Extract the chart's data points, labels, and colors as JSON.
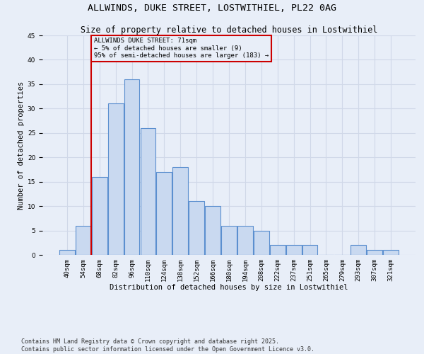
{
  "title": "ALLWINDS, DUKE STREET, LOSTWITHIEL, PL22 0AG",
  "subtitle": "Size of property relative to detached houses in Lostwithiel",
  "xlabel": "Distribution of detached houses by size in Lostwithiel",
  "ylabel": "Number of detached properties",
  "bar_labels": [
    "40sqm",
    "54sqm",
    "68sqm",
    "82sqm",
    "96sqm",
    "110sqm",
    "124sqm",
    "138sqm",
    "152sqm",
    "166sqm",
    "180sqm",
    "194sqm",
    "208sqm",
    "222sqm",
    "237sqm",
    "251sqm",
    "265sqm",
    "279sqm",
    "293sqm",
    "307sqm",
    "321sqm"
  ],
  "bar_values": [
    1,
    6,
    16,
    31,
    36,
    26,
    17,
    18,
    11,
    10,
    6,
    6,
    5,
    2,
    2,
    2,
    0,
    0,
    2,
    1,
    1
  ],
  "bar_color": "#c9d9f0",
  "bar_edge_color": "#5b8fcf",
  "grid_color": "#d0d8e8",
  "bg_color": "#e8eef8",
  "vline_x_index": 2,
  "vline_color": "#cc0000",
  "annotation_text": "ALLWINDS DUKE STREET: 71sqm\n← 5% of detached houses are smaller (9)\n95% of semi-detached houses are larger (183) →",
  "annotation_box_color": "#cc0000",
  "ylim": [
    0,
    45
  ],
  "yticks": [
    0,
    5,
    10,
    15,
    20,
    25,
    30,
    35,
    40,
    45
  ],
  "footer": "Contains HM Land Registry data © Crown copyright and database right 2025.\nContains public sector information licensed under the Open Government Licence v3.0.",
  "title_fontsize": 9.5,
  "subtitle_fontsize": 8.5,
  "label_fontsize": 7.5,
  "tick_fontsize": 6.5,
  "annotation_fontsize": 6.5,
  "footer_fontsize": 6.0
}
